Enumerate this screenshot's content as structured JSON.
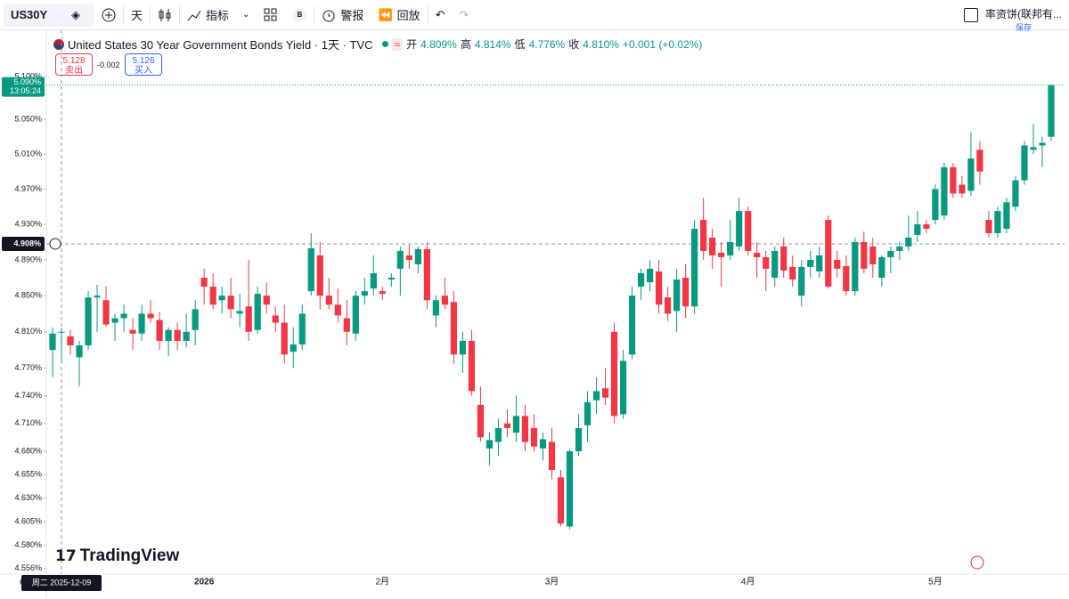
{
  "toolbar": {
    "symbol": "US30Y",
    "interval": "天",
    "indicators": "指标",
    "badge": "B",
    "alerts": "警报",
    "replay": "回放",
    "layout_name": "率资饼(联邦有...",
    "save": "保存"
  },
  "legend": {
    "title": "United States 30 Year Government Bonds Yield · 1天 · TVC",
    "open_label": "开",
    "open": "4.809%",
    "high_label": "高",
    "high": "4.814%",
    "low_label": "低",
    "low": "4.776%",
    "close_label": "收",
    "close": "4.810%",
    "change": "+0.001 (+0.02%)"
  },
  "scale_unit": "%",
  "trade": {
    "sell_price": "5.128",
    "sell": "卖出",
    "spread": "-0.002",
    "buy_price": "5.126",
    "buy": "买入"
  },
  "watermark": "TradingView",
  "chart_data": {
    "type": "candlestick",
    "log": true,
    "up_color": "#089981",
    "down_color": "#f23645",
    "ylim": [
      4.55,
      5.125
    ],
    "yticks": [
      {
        "value": 5.1,
        "label": "5.100%"
      },
      {
        "value": 5.05,
        "label": "5.050%"
      },
      {
        "value": 5.01,
        "label": "5.010%"
      },
      {
        "value": 4.97,
        "label": "4.970%"
      },
      {
        "value": 4.93,
        "label": "4.930%"
      },
      {
        "value": 4.89,
        "label": "4.890%"
      },
      {
        "value": 4.85,
        "label": "4.850%"
      },
      {
        "value": 4.81,
        "label": "4.810%"
      },
      {
        "value": 4.77,
        "label": "4.770%"
      },
      {
        "value": 4.74,
        "label": "4.740%"
      },
      {
        "value": 4.71,
        "label": "4.710%"
      },
      {
        "value": 4.68,
        "label": "4.680%"
      },
      {
        "value": 4.655,
        "label": "4.655%"
      },
      {
        "value": 4.63,
        "label": "4.630%"
      },
      {
        "value": 4.605,
        "label": "4.605%"
      },
      {
        "value": 4.58,
        "label": "4.580%"
      },
      {
        "value": 4.556,
        "label": "4.556%"
      }
    ],
    "xticks": [
      {
        "value": 17,
        "label": "2026"
      },
      {
        "value": 37,
        "label": "2月"
      },
      {
        "value": 56,
        "label": "3月"
      },
      {
        "value": 78,
        "label": "4月"
      },
      {
        "value": 99,
        "label": "5月"
      }
    ],
    "last_price": {
      "value": 5.09,
      "label": "5.090%"
    },
    "countdown": "13:05:24",
    "crosshair": {
      "value": 4.908,
      "label": "4.908%"
    },
    "crosshair_date": "周二 2025-12-09",
    "candles": [
      [
        4.79,
        4.815,
        4.76,
        4.808
      ],
      [
        4.809,
        4.814,
        4.776,
        4.81
      ],
      [
        4.805,
        4.812,
        4.785,
        4.795
      ],
      [
        4.782,
        4.8,
        4.75,
        4.795
      ],
      [
        4.795,
        4.855,
        4.79,
        4.848
      ],
      [
        4.848,
        4.862,
        4.81,
        4.85
      ],
      [
        4.845,
        4.86,
        4.815,
        4.818
      ],
      [
        4.82,
        4.83,
        4.8,
        4.825
      ],
      [
        4.825,
        4.84,
        4.81,
        4.83
      ],
      [
        4.812,
        4.825,
        4.79,
        4.808
      ],
      [
        4.808,
        4.84,
        4.8,
        4.83
      ],
      [
        4.83,
        4.845,
        4.82,
        4.825
      ],
      [
        4.823,
        4.832,
        4.79,
        4.8
      ],
      [
        4.8,
        4.815,
        4.783,
        4.812
      ],
      [
        4.812,
        4.82,
        4.79,
        4.8
      ],
      [
        4.8,
        4.83,
        4.793,
        4.81
      ],
      [
        4.812,
        4.845,
        4.795,
        4.835
      ],
      [
        4.87,
        4.88,
        4.84,
        4.86
      ],
      [
        4.86,
        4.875,
        4.835,
        4.84
      ],
      [
        4.845,
        4.86,
        4.83,
        4.85
      ],
      [
        4.85,
        4.87,
        4.825,
        4.835
      ],
      [
        4.83,
        4.852,
        4.815,
        4.833
      ],
      [
        4.838,
        4.89,
        4.8,
        4.81
      ],
      [
        4.812,
        4.86,
        4.808,
        4.852
      ],
      [
        4.85,
        4.865,
        4.83,
        4.84
      ],
      [
        4.828,
        4.838,
        4.81,
        4.82
      ],
      [
        4.82,
        4.84,
        4.775,
        4.785
      ],
      [
        4.788,
        4.815,
        4.77,
        4.796
      ],
      [
        4.796,
        4.84,
        4.79,
        4.83
      ],
      [
        4.855,
        4.92,
        4.85,
        4.903
      ],
      [
        4.895,
        4.91,
        4.835,
        4.85
      ],
      [
        4.85,
        4.87,
        4.835,
        4.84
      ],
      [
        4.84,
        4.858,
        4.82,
        4.828
      ],
      [
        4.825,
        4.845,
        4.795,
        4.81
      ],
      [
        4.808,
        4.855,
        4.8,
        4.85
      ],
      [
        4.85,
        4.87,
        4.84,
        4.855
      ],
      [
        4.858,
        4.895,
        4.85,
        4.875
      ],
      [
        4.855,
        4.86,
        4.845,
        4.852
      ],
      [
        4.868,
        4.875,
        4.86,
        4.87
      ],
      [
        4.88,
        4.905,
        4.85,
        4.9
      ],
      [
        4.895,
        4.907,
        4.88,
        4.89
      ],
      [
        4.885,
        4.905,
        4.875,
        4.902
      ],
      [
        4.902,
        4.91,
        4.835,
        4.845
      ],
      [
        4.828,
        4.85,
        4.815,
        4.845
      ],
      [
        4.85,
        4.87,
        4.835,
        4.84
      ],
      [
        4.843,
        4.855,
        4.775,
        4.785
      ],
      [
        4.785,
        4.81,
        4.765,
        4.8
      ],
      [
        4.8,
        4.812,
        4.74,
        4.745
      ],
      [
        4.73,
        4.75,
        4.69,
        4.695
      ],
      [
        4.683,
        4.7,
        4.665,
        4.692
      ],
      [
        4.69,
        4.715,
        4.675,
        4.705
      ],
      [
        4.71,
        4.725,
        4.695,
        4.705
      ],
      [
        4.7,
        4.74,
        4.69,
        4.718
      ],
      [
        4.718,
        4.73,
        4.68,
        4.69
      ],
      [
        4.705,
        4.72,
        4.68,
        4.685
      ],
      [
        4.683,
        4.7,
        4.67,
        4.693
      ],
      [
        4.69,
        4.705,
        4.65,
        4.66
      ],
      [
        4.652,
        4.66,
        4.6,
        4.603
      ],
      [
        4.6,
        4.682,
        4.597,
        4.68
      ],
      [
        4.68,
        4.72,
        4.675,
        4.705
      ],
      [
        4.708,
        4.745,
        4.69,
        4.733
      ],
      [
        4.735,
        4.76,
        4.72,
        4.745
      ],
      [
        4.748,
        4.77,
        4.73,
        4.738
      ],
      [
        4.81,
        4.82,
        4.71,
        4.718
      ],
      [
        4.72,
        4.79,
        4.715,
        4.778
      ],
      [
        4.785,
        4.86,
        4.78,
        4.85
      ],
      [
        4.86,
        4.88,
        4.845,
        4.875
      ],
      [
        4.865,
        4.89,
        4.855,
        4.88
      ],
      [
        4.877,
        4.89,
        4.83,
        4.84
      ],
      [
        4.848,
        4.86,
        4.822,
        4.83
      ],
      [
        4.833,
        4.88,
        4.81,
        4.868
      ],
      [
        4.87,
        4.885,
        4.825,
        4.838
      ],
      [
        4.838,
        4.935,
        4.83,
        4.925
      ],
      [
        4.935,
        4.96,
        4.89,
        4.9
      ],
      [
        4.915,
        4.925,
        4.88,
        4.895
      ],
      [
        4.898,
        4.91,
        4.86,
        4.893
      ],
      [
        4.895,
        4.935,
        4.89,
        4.91
      ],
      [
        4.905,
        4.96,
        4.9,
        4.945
      ],
      [
        4.945,
        4.95,
        4.895,
        4.9
      ],
      [
        4.898,
        4.91,
        4.87,
        4.893
      ],
      [
        4.893,
        4.9,
        4.855,
        4.88
      ],
      [
        4.87,
        4.905,
        4.86,
        4.9
      ],
      [
        4.905,
        4.915,
        4.87,
        4.878
      ],
      [
        4.882,
        4.895,
        4.86,
        4.868
      ],
      [
        4.85,
        4.89,
        4.838,
        4.882
      ],
      [
        4.882,
        4.9,
        4.87,
        4.89
      ],
      [
        4.877,
        4.905,
        4.87,
        4.895
      ],
      [
        4.935,
        4.94,
        4.858,
        4.86
      ],
      [
        4.89,
        4.9,
        4.87,
        4.88
      ],
      [
        4.883,
        4.895,
        4.85,
        4.855
      ],
      [
        4.855,
        4.915,
        4.85,
        4.91
      ],
      [
        4.91,
        4.922,
        4.875,
        4.88
      ],
      [
        4.905,
        4.915,
        4.87,
        4.885
      ],
      [
        4.87,
        4.895,
        4.86,
        4.893
      ],
      [
        4.893,
        4.905,
        4.875,
        4.9
      ],
      [
        4.9,
        4.91,
        4.89,
        4.905
      ],
      [
        4.905,
        4.94,
        4.9,
        4.915
      ],
      [
        4.918,
        4.945,
        4.91,
        4.93
      ],
      [
        4.93,
        4.935,
        4.92,
        4.925
      ],
      [
        4.935,
        4.975,
        4.93,
        4.97
      ],
      [
        4.94,
        5.0,
        4.935,
        4.995
      ],
      [
        4.995,
        5.0,
        4.96,
        4.965
      ],
      [
        4.975,
        4.985,
        4.96,
        4.965
      ],
      [
        4.968,
        5.035,
        4.962,
        5.005
      ],
      [
        5.015,
        5.025,
        4.975,
        4.99
      ],
      [
        4.935,
        4.945,
        4.915,
        4.92
      ],
      [
        4.92,
        4.95,
        4.915,
        4.945
      ],
      [
        4.925,
        4.96,
        4.92,
        4.955
      ],
      [
        4.95,
        4.985,
        4.945,
        4.98
      ],
      [
        4.98,
        5.025,
        4.975,
        5.02
      ],
      [
        5.015,
        5.045,
        5.01,
        5.018
      ],
      [
        5.02,
        5.03,
        4.995,
        5.023
      ],
      [
        5.03,
        5.09,
        5.025,
        5.09
      ]
    ]
  }
}
